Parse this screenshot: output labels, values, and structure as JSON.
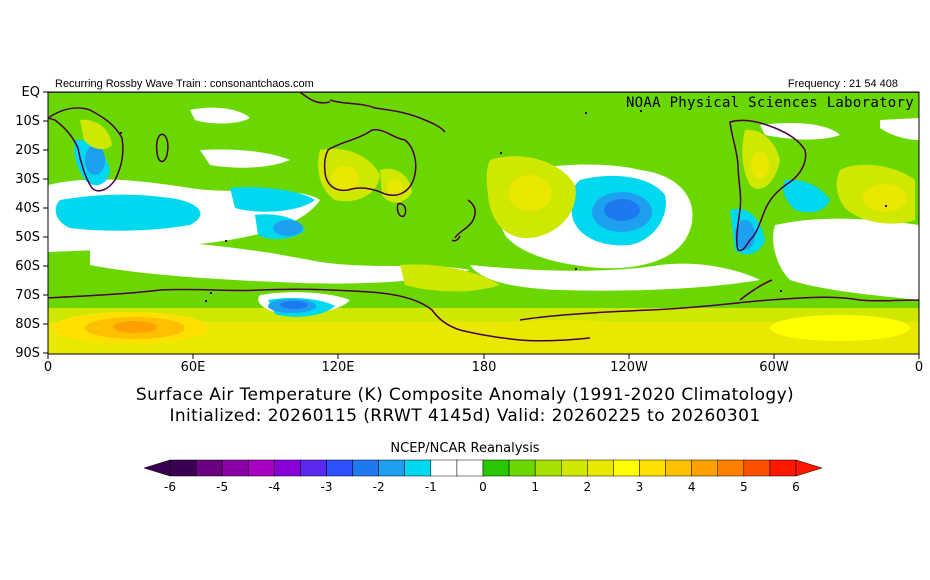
{
  "header": {
    "left_text": "Recurring Rossby Wave Train : consonantchaos.com",
    "right_text": "Frequency : 21 54 408",
    "credit": "NOAA Physical Sciences Laboratory"
  },
  "axes": {
    "lat_labels": [
      "EQ",
      "10S",
      "20S",
      "30S",
      "40S",
      "50S",
      "60S",
      "70S",
      "80S",
      "90S"
    ],
    "lon_labels": [
      "0",
      "60E",
      "120E",
      "180",
      "120W",
      "60W",
      "0"
    ]
  },
  "titles": {
    "line1": "Surface Air Temperature (K) Composite Anomaly (1991-2020 Climatology)",
    "line2": "Initialized: 20260115 (RRWT 4145d) Valid: 20260225 to 20260301"
  },
  "colorbar": {
    "source": "NCEP/NCAR Reanalysis",
    "tick_labels": [
      "-6",
      "-5",
      "-4",
      "-3",
      "-2",
      "-1",
      "0",
      "1",
      "2",
      "3",
      "4",
      "5",
      "6"
    ],
    "colors": [
      "#3a0052",
      "#6a0080",
      "#8c00a8",
      "#a800c0",
      "#8a00d8",
      "#5a28f0",
      "#2e50ff",
      "#1e78f0",
      "#1ea0f0",
      "#00d8f0",
      "#ffffff",
      "#ffffff",
      "#28c800",
      "#6ad800",
      "#a8e000",
      "#d0e800",
      "#e8e800",
      "#ffff00",
      "#ffe000",
      "#ffc000",
      "#ffa000",
      "#ff8000",
      "#ff5000",
      "#ff1800"
    ]
  }
}
